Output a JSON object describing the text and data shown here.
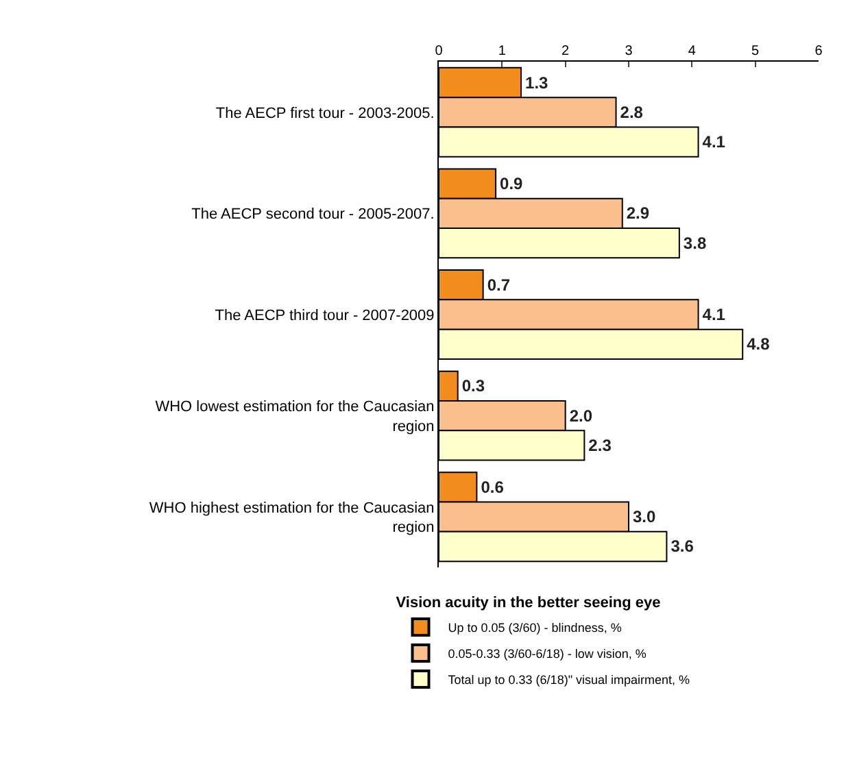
{
  "chart_data": {
    "type": "bar",
    "orientation": "horizontal",
    "categories": [
      "The AECP first tour - 2003-2005.",
      "The AECP second tour - 2005-2007.",
      "The AECP third tour - 2007-2009",
      "WHO lowest estimation for the Caucasian region",
      "WHO highest estimation for the Caucasian region"
    ],
    "series": [
      {
        "name": "Up to 0.05 (3/60) - blindness, %",
        "color": "#f28c1c",
        "values": [
          1.3,
          0.9,
          0.7,
          0.3,
          0.6
        ],
        "value_labels": [
          "1.3",
          "0.9",
          "0.7",
          "0.3",
          "0.6"
        ]
      },
      {
        "name": "0.05-0.33 (3/60-6/18) - low vision, %",
        "color": "#fbbf8e",
        "values": [
          2.8,
          2.9,
          4.1,
          2.0,
          3.0
        ],
        "value_labels": [
          "2.8",
          "2.9",
          "4.1",
          "2.0",
          "3.0"
        ]
      },
      {
        "name": "Total up to 0.33 (6/18)\" visual impairment, %",
        "color": "#ffffcc",
        "values": [
          4.1,
          3.8,
          4.8,
          2.3,
          3.6
        ],
        "value_labels": [
          "4.1",
          "3.8",
          "4.8",
          "2.3",
          "3.6"
        ]
      }
    ],
    "legend_title": "Vision acuity in the better seeing eye",
    "legend": "bottom",
    "xlim": [
      0,
      6
    ],
    "xticks": [
      0,
      1,
      2,
      3,
      4,
      5,
      6
    ],
    "grid": false
  }
}
